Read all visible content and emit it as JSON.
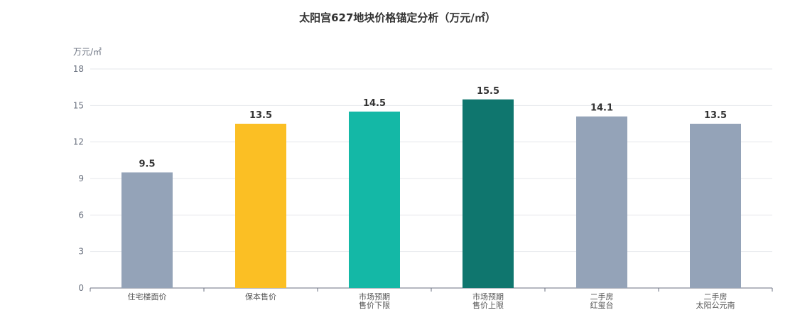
{
  "chart_data": {
    "type": "bar",
    "title": "太阳宫627地块价格锚定分析（万元/㎡）",
    "ylabel": "万元/㎡",
    "xlabel": "",
    "ylim": [
      0,
      18
    ],
    "yticks": [
      0,
      3,
      6,
      9,
      12,
      15,
      18
    ],
    "categories": [
      [
        "住宅楼面价"
      ],
      [
        "保本售价"
      ],
      [
        "市场预期",
        "售价下限"
      ],
      [
        "市场预期",
        "售价上限"
      ],
      [
        "二手房",
        "红玺台"
      ],
      [
        "二手房",
        "太阳公元南"
      ]
    ],
    "values": [
      9.5,
      13.5,
      14.5,
      15.5,
      14.1,
      13.5
    ],
    "value_labels": [
      "9.5",
      "13.5",
      "14.5",
      "15.5",
      "14.1",
      "13.5"
    ],
    "bar_colors": [
      "#94A3B8",
      "#FBBF24",
      "#14B8A6",
      "#0F766E",
      "#94A3B8",
      "#94A3B8"
    ],
    "grid": true,
    "legend": "none"
  }
}
